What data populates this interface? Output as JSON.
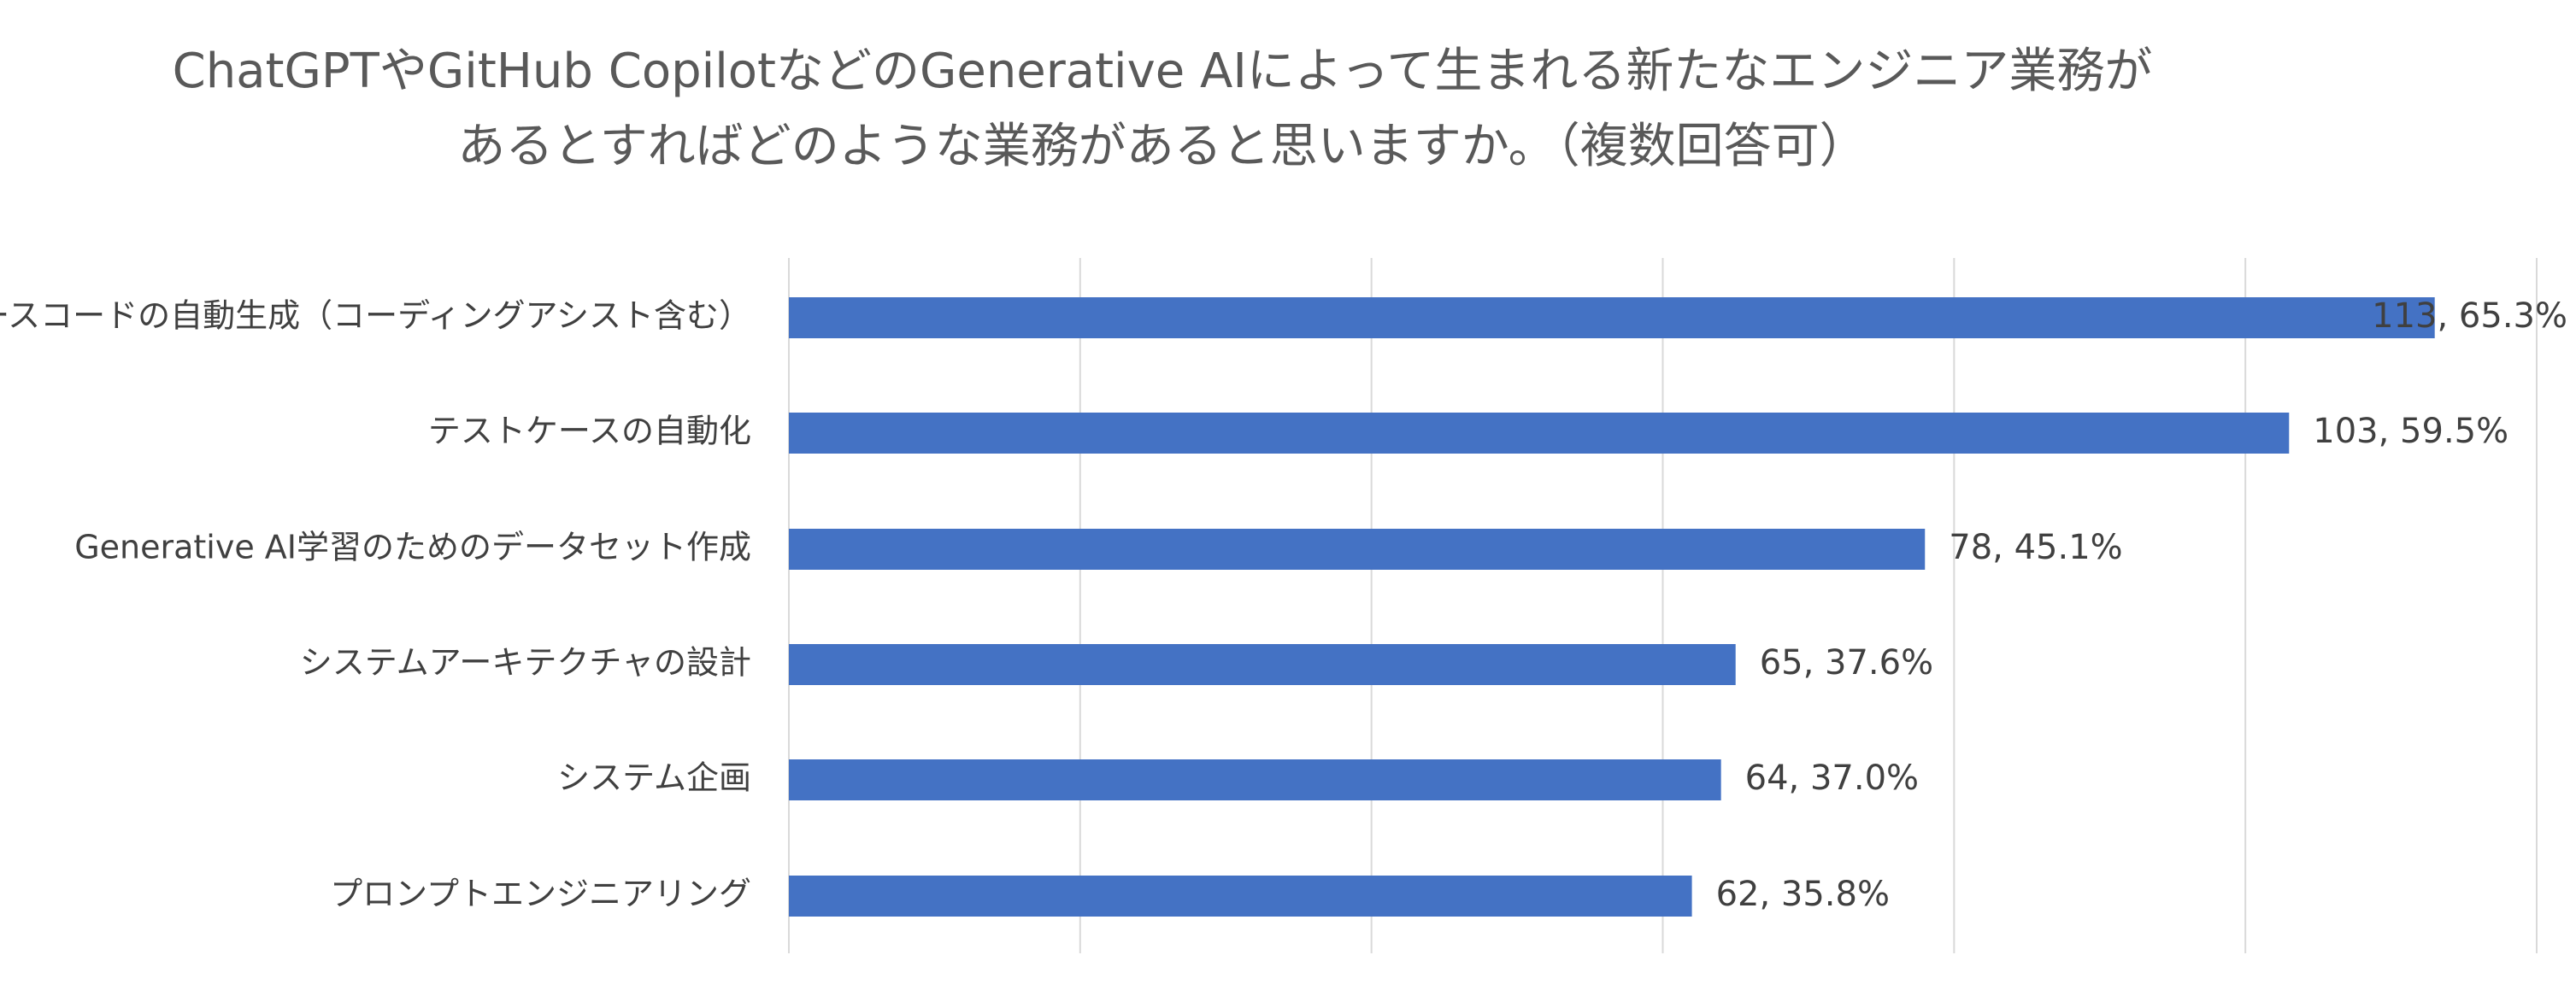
{
  "chart_data": {
    "type": "bar",
    "orientation": "horizontal",
    "title_lines": [
      "ChatGPTやGitHub CopilotなどのGenerative AIによって生まれる新たなエンジニア業務が",
      "あるとすればどのような業務があると思いますか。（複数回答可）"
    ],
    "categories": [
      "ソースコードの自動生成（コーディングアシスト含む）",
      "テストケースの自動化",
      "Generative AI学習のためのデータセット作成",
      "システムアーキテクチャの設計",
      "システム企画",
      "プロンプトエンジニアリング"
    ],
    "values": [
      113,
      103,
      78,
      65,
      64,
      62
    ],
    "percentages": [
      "65.3%",
      "59.5%",
      "45.1%",
      "37.6%",
      "37.0%",
      "35.8%"
    ],
    "data_labels": [
      "113, 65.3%",
      "103, 59.5%",
      "78, 45.1%",
      "65, 37.6%",
      "64, 37.0%",
      "62, 35.8%"
    ],
    "xlim": [
      0,
      120
    ],
    "grid_step": 20,
    "grid": true,
    "legend": "none",
    "bar_color": "#4472c4",
    "grid_color": "#d9d9d9",
    "text_color": "#404040",
    "title_color": "#595959"
  }
}
